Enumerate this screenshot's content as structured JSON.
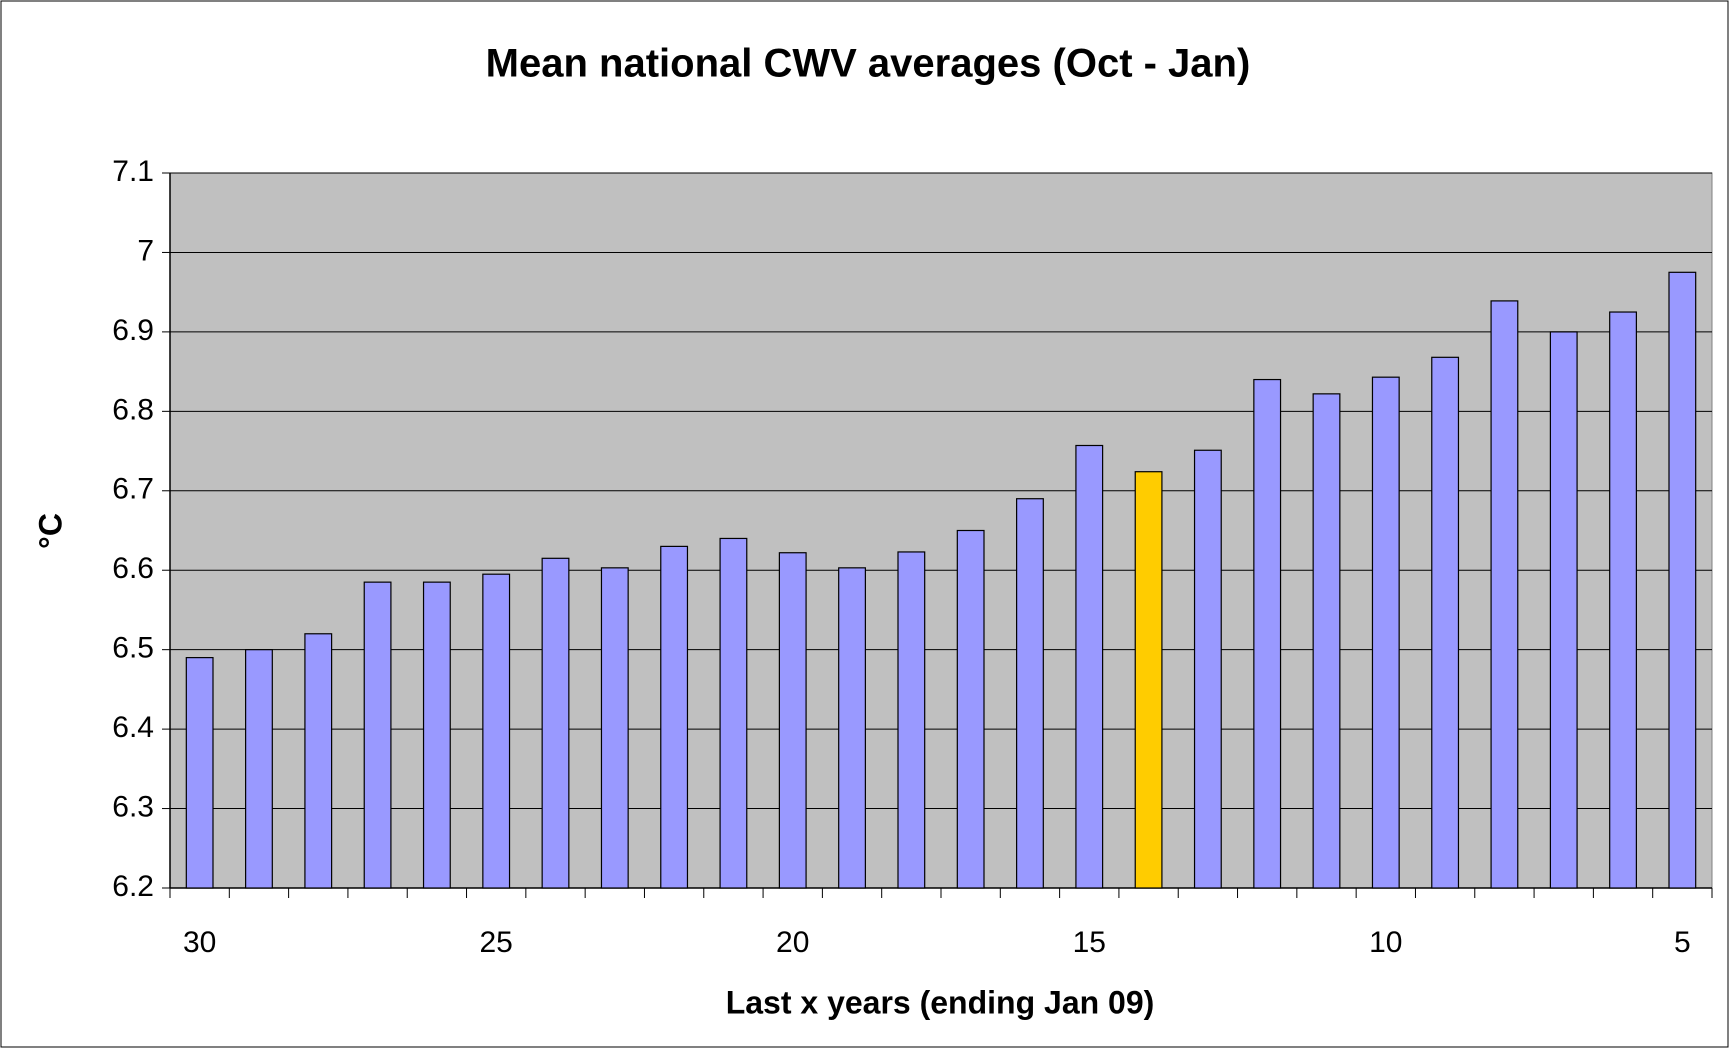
{
  "chart_data": {
    "type": "bar",
    "title": "Mean national CWV averages (Oct - Jan)",
    "x_label": "Last x years (ending Jan 09)",
    "y_label": "°C",
    "categories": [
      30,
      null,
      null,
      null,
      null,
      25,
      null,
      null,
      null,
      null,
      20,
      null,
      null,
      null,
      null,
      15,
      null,
      null,
      null,
      null,
      10,
      null,
      null,
      null,
      null,
      5
    ],
    "values": [
      6.49,
      6.5,
      6.52,
      6.585,
      6.585,
      6.595,
      6.615,
      6.603,
      6.63,
      6.64,
      6.622,
      6.603,
      6.623,
      6.65,
      6.69,
      6.757,
      6.724,
      6.751,
      6.84,
      6.822,
      6.843,
      6.868,
      6.939,
      6.9,
      6.925,
      6.975
    ],
    "colors": [
      "#9999ff",
      "#9999ff",
      "#9999ff",
      "#9999ff",
      "#9999ff",
      "#9999ff",
      "#9999ff",
      "#9999ff",
      "#9999ff",
      "#9999ff",
      "#9999ff",
      "#9999ff",
      "#9999ff",
      "#9999ff",
      "#9999ff",
      "#9999ff",
      "#ffcc00",
      "#9999ff",
      "#9999ff",
      "#9999ff",
      "#9999ff",
      "#9999ff",
      "#9999ff",
      "#9999ff",
      "#9999ff",
      "#9999ff"
    ],
    "ylim": [
      6.2,
      7.1
    ],
    "yticks": [
      6.2,
      6.3,
      6.4,
      6.5,
      6.6,
      6.7,
      6.8,
      6.9,
      7,
      7.1
    ],
    "grid": true,
    "plot_background": "#c0c0c0"
  }
}
